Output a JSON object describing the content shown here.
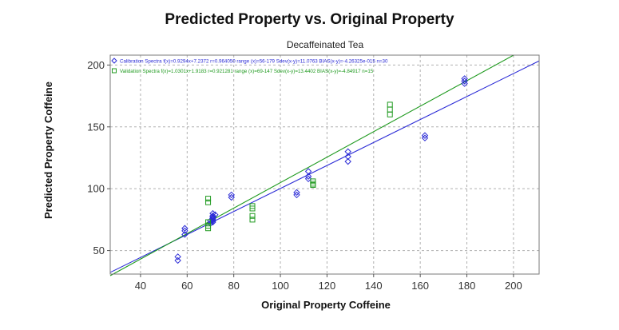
{
  "chart_data": {
    "type": "scatter",
    "title": "Predicted Property vs. Original Property",
    "subtitle": "Decaffeinated Tea",
    "xlabel": "Original Property Coffeine",
    "ylabel": "Predicted Property Coffeine",
    "xlim": [
      27,
      211
    ],
    "ylim": [
      31,
      208
    ],
    "xticks": [
      40,
      60,
      80,
      100,
      120,
      140,
      160,
      180,
      200
    ],
    "yticks": [
      50,
      100,
      150,
      200
    ],
    "grid": true,
    "legend_position": "top-left",
    "series": [
      {
        "name": "Calibration Spectra",
        "legend": "Calibration Spectra f(x)=0.9294x+7.2372  r=0.964050  range (x)=56-179  Sdev(x-y)=11.0763  BIAS(x-y)=-4.26325e-015  n=30",
        "marker": "diamond",
        "color": "#2b2bd6",
        "points": [
          [
            56,
            45
          ],
          [
            56,
            42
          ],
          [
            59,
            68
          ],
          [
            59,
            66
          ],
          [
            59,
            63
          ],
          [
            71,
            80
          ],
          [
            71,
            78
          ],
          [
            71,
            77
          ],
          [
            71,
            76
          ],
          [
            71,
            75
          ],
          [
            72,
            79
          ],
          [
            79,
            95
          ],
          [
            79,
            93
          ],
          [
            107,
            97
          ],
          [
            107,
            95
          ],
          [
            112,
            114
          ],
          [
            112,
            110
          ],
          [
            112,
            108
          ],
          [
            129,
            130
          ],
          [
            129,
            126
          ],
          [
            129,
            122
          ],
          [
            162,
            143
          ],
          [
            162,
            141
          ],
          [
            179,
            189
          ],
          [
            179,
            187
          ],
          [
            179,
            185
          ],
          [
            70,
            74
          ],
          [
            70,
            72
          ],
          [
            71,
            73
          ],
          [
            71,
            74
          ]
        ],
        "fit": {
          "slope": 0.9294,
          "intercept": 7.2372
        }
      },
      {
        "name": "Validation Spectra",
        "legend": "Validation Spectra f(x)=1.0301x+1.9183  r=0.921281  range (x)=69-147  Sdev(x-y)=13.4402  BIAS(x-y)=-4.84917  n=15",
        "marker": "square",
        "color": "#1f9a1f",
        "points": [
          [
            69,
            92
          ],
          [
            69,
            89
          ],
          [
            69,
            73
          ],
          [
            69,
            70
          ],
          [
            69,
            68
          ],
          [
            88,
            86
          ],
          [
            88,
            84
          ],
          [
            88,
            78
          ],
          [
            88,
            75
          ],
          [
            114,
            106
          ],
          [
            114,
            104
          ],
          [
            114,
            103
          ],
          [
            147,
            168
          ],
          [
            147,
            164
          ],
          [
            147,
            160
          ]
        ],
        "fit": {
          "slope": 1.0301,
          "intercept": 1.9183
        }
      }
    ]
  }
}
